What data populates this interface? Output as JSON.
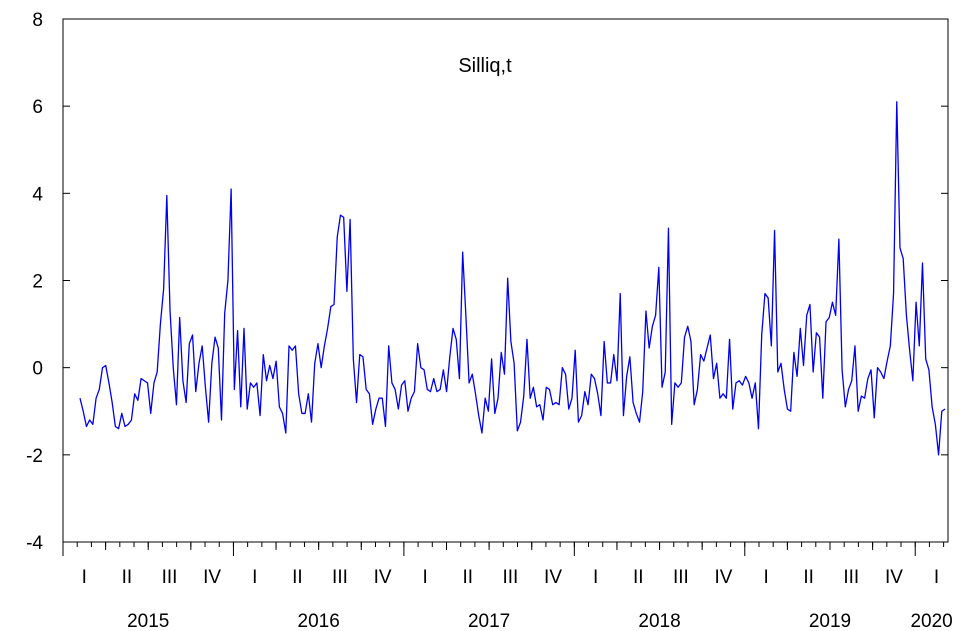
{
  "chart_data": {
    "type": "line",
    "title": "Silliq,t",
    "xlabel": "",
    "ylabel": "",
    "ylim": [
      -4,
      8
    ],
    "yticks": [
      -4,
      -2,
      0,
      2,
      4,
      6,
      8
    ],
    "grid": false,
    "legend": "none",
    "x_start_year": 2015,
    "points_per_quarter": 13,
    "quarter_labels": [
      "I",
      "II",
      "III",
      "IV"
    ],
    "year_labels": [
      "2015",
      "2016",
      "2017",
      "2018",
      "2019",
      "2020"
    ],
    "series": [
      {
        "color": "#0000ee",
        "values": [
          -0.7,
          -1.0,
          -1.35,
          -1.2,
          -1.3,
          -0.7,
          -0.5,
          0.0,
          0.05,
          -0.35,
          -0.8,
          -1.35,
          -1.4,
          -1.05,
          -1.35,
          -1.3,
          -1.2,
          -0.6,
          -0.75,
          -0.25,
          -0.3,
          -0.35,
          -1.05,
          -0.35,
          -0.1,
          1.0,
          1.8,
          3.95,
          1.3,
          0.0,
          -0.85,
          1.15,
          -0.3,
          -0.8,
          0.55,
          0.75,
          -0.55,
          0.1,
          0.5,
          -0.45,
          -1.25,
          0.1,
          0.7,
          0.45,
          -1.2,
          1.25,
          2.0,
          4.1,
          -0.5,
          0.85,
          -0.9,
          0.9,
          -0.95,
          -0.35,
          -0.45,
          -0.35,
          -1.1,
          0.3,
          -0.3,
          0.05,
          -0.25,
          0.15,
          -0.9,
          -1.05,
          -1.5,
          0.5,
          0.4,
          0.5,
          -0.6,
          -1.05,
          -1.05,
          -0.6,
          -1.25,
          0.1,
          0.55,
          0.0,
          0.5,
          0.9,
          1.4,
          1.45,
          3.0,
          3.5,
          3.45,
          1.75,
          3.4,
          0.2,
          -0.8,
          0.3,
          0.25,
          -0.5,
          -0.6,
          -1.3,
          -0.95,
          -0.7,
          -0.7,
          -1.35,
          0.5,
          -0.35,
          -0.5,
          -0.95,
          -0.4,
          -0.3,
          -1.0,
          -0.7,
          -0.55,
          0.55,
          0.0,
          -0.05,
          -0.5,
          -0.55,
          -0.25,
          -0.55,
          -0.5,
          -0.05,
          -0.55,
          0.25,
          0.9,
          0.65,
          -0.25,
          2.65,
          1.2,
          -0.35,
          -0.15,
          -0.6,
          -1.1,
          -1.5,
          -0.7,
          -1.0,
          0.2,
          -1.05,
          -0.7,
          0.35,
          -0.15,
          2.05,
          0.6,
          0.1,
          -1.45,
          -1.25,
          -0.65,
          0.65,
          -0.7,
          -0.45,
          -0.9,
          -0.85,
          -1.2,
          -0.45,
          -0.5,
          -0.85,
          -0.8,
          -0.85,
          0.0,
          -0.15,
          -0.95,
          -0.7,
          0.4,
          -1.25,
          -1.1,
          -0.55,
          -0.85,
          -0.15,
          -0.25,
          -0.6,
          -1.1,
          0.6,
          -0.35,
          -0.35,
          0.3,
          -0.3,
          1.7,
          -1.1,
          -0.2,
          0.25,
          -0.8,
          -1.05,
          -1.25,
          -0.55,
          1.3,
          0.45,
          0.95,
          1.2,
          2.3,
          -0.45,
          -0.1,
          3.2,
          -1.3,
          -0.35,
          -0.45,
          -0.35,
          0.7,
          0.95,
          0.6,
          -0.85,
          -0.5,
          0.3,
          0.15,
          0.45,
          0.75,
          -0.25,
          0.1,
          -0.7,
          -0.6,
          -0.7,
          0.65,
          -0.95,
          -0.35,
          -0.3,
          -0.4,
          -0.2,
          -0.35,
          -0.7,
          -0.35,
          -1.4,
          0.75,
          1.7,
          1.6,
          0.5,
          3.15,
          -0.1,
          0.1,
          -0.5,
          -0.95,
          -1.0,
          0.35,
          -0.2,
          0.9,
          0.05,
          1.2,
          1.45,
          -0.1,
          0.8,
          0.7,
          -0.7,
          1.05,
          1.15,
          1.5,
          1.2,
          2.95,
          -0.05,
          -0.9,
          -0.5,
          -0.3,
          0.5,
          -1.0,
          -0.65,
          -0.7,
          -0.25,
          -0.05,
          -1.15,
          0.0,
          -0.1,
          -0.25,
          0.15,
          0.5,
          1.7,
          6.1,
          2.75,
          2.5,
          1.2,
          0.4,
          -0.3,
          1.5,
          0.5,
          2.4,
          0.2,
          -0.05,
          -0.9,
          -1.3,
          -2.0,
          -1.0,
          -0.95
        ]
      }
    ]
  }
}
